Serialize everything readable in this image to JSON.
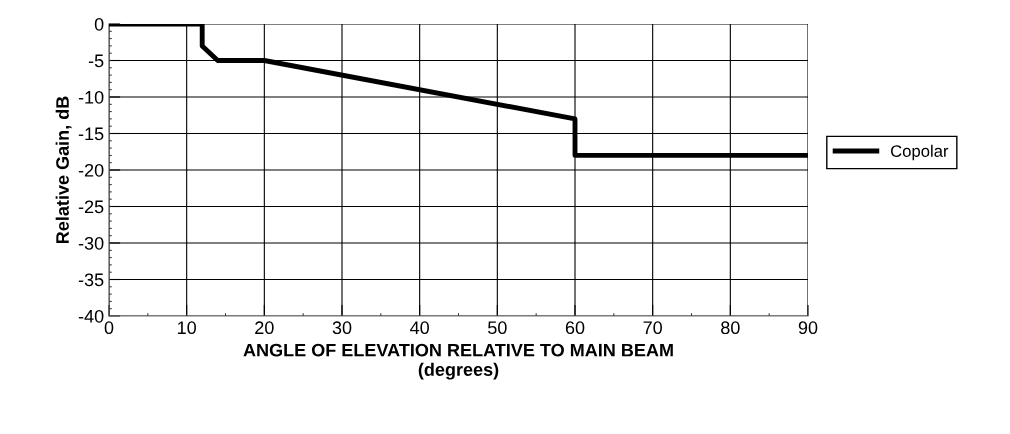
{
  "chart_data": {
    "type": "line",
    "xlabel": "ANGLE OF ELEVATION RELATIVE TO MAIN BEAM\n(degrees)",
    "ylabel": "Relative Gain, dB",
    "series": [
      {
        "name": "Copolar",
        "color": "#000000",
        "x": [
          0,
          12,
          12,
          14,
          20,
          60,
          60,
          90
        ],
        "values": [
          0,
          0,
          -3,
          -5,
          -5,
          -13,
          -18,
          -18
        ]
      }
    ],
    "xlim": [
      0,
      90
    ],
    "xticks": [
      0,
      10,
      20,
      30,
      40,
      50,
      60,
      70,
      80,
      90
    ],
    "ylim": [
      -40,
      0
    ],
    "yticks": [
      0,
      -5,
      -10,
      -15,
      -20,
      -25,
      -30,
      -35,
      -40
    ],
    "grid": true,
    "legend": "right",
    "marker": "none",
    "line_style": "solid"
  }
}
